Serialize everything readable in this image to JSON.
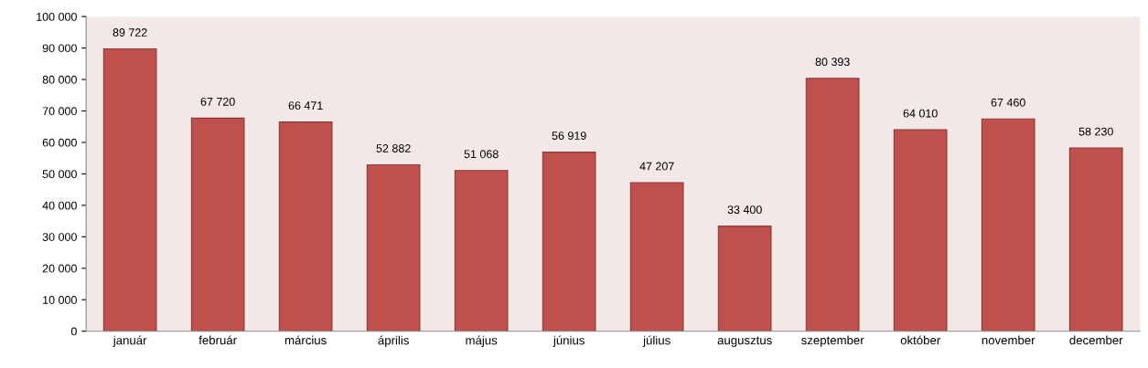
{
  "chart_data": {
    "type": "bar",
    "categories": [
      "január",
      "február",
      "március",
      "április",
      "május",
      "június",
      "július",
      "augusztus",
      "szeptember",
      "október",
      "november",
      "december"
    ],
    "values": [
      89722,
      67720,
      66471,
      52882,
      51068,
      56919,
      47207,
      33400,
      80393,
      64010,
      67460,
      58230
    ],
    "value_labels": [
      "89 722",
      "67 720",
      "66 471",
      "52 882",
      "51 068",
      "56 919",
      "47 207",
      "33 400",
      "80 393",
      "64 010",
      "67 460",
      "58 230"
    ],
    "color": "#c0504d",
    "ylim": [
      0,
      100000
    ],
    "yticks": [
      {
        "value": 0,
        "label": "0"
      },
      {
        "value": 10000,
        "label": "10 000"
      },
      {
        "value": 20000,
        "label": "20 000"
      },
      {
        "value": 30000,
        "label": "30 000"
      },
      {
        "value": 40000,
        "label": "40 000"
      },
      {
        "value": 50000,
        "label": "50 000"
      },
      {
        "value": 60000,
        "label": "60 000"
      },
      {
        "value": 70000,
        "label": "70 000"
      },
      {
        "value": 80000,
        "label": "80 000"
      },
      {
        "value": 90000,
        "label": "90 000"
      },
      {
        "value": 100000,
        "label": "100 000"
      }
    ],
    "grid": false,
    "legend": false
  }
}
